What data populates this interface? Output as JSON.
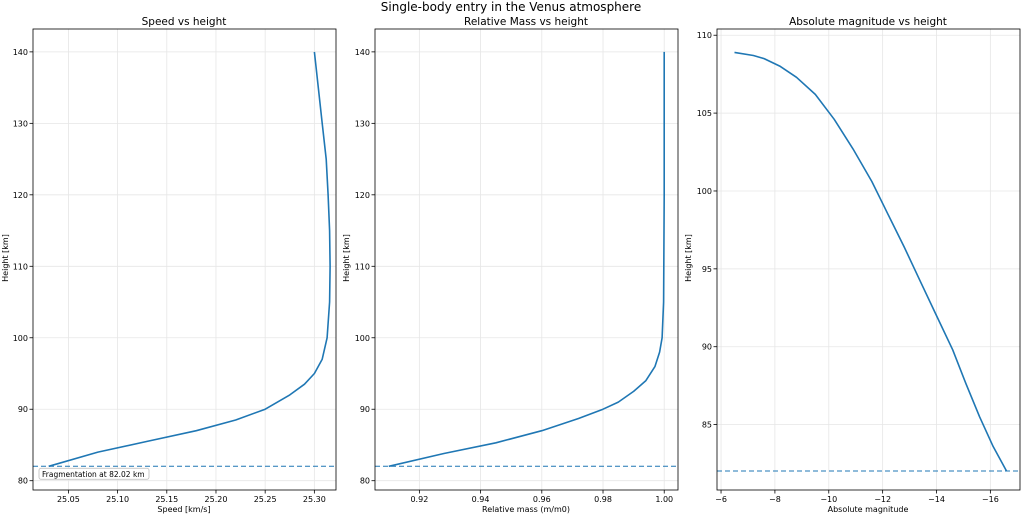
{
  "figure": {
    "suptitle": "Single-body entry in the Venus atmosphere"
  },
  "colors": {
    "series": "#1f77b4",
    "grid": "#e6e6e6",
    "axes": "#000000"
  },
  "chart_data": [
    {
      "type": "line",
      "title": "Speed vs height",
      "xlabel": "Speed [km/s]",
      "ylabel": "Height [km]",
      "xlim": [
        25.014,
        25.322
      ],
      "ylim": [
        78.7,
        143.2
      ],
      "xticks": [
        25.05,
        25.1,
        25.15,
        25.2,
        25.25,
        25.3
      ],
      "xtick_labels": [
        "25.05",
        "25.10",
        "25.15",
        "25.20",
        "25.25",
        "25.30"
      ],
      "yticks": [
        80,
        90,
        100,
        110,
        120,
        130,
        140
      ],
      "ytick_labels": [
        "80",
        "90",
        "100",
        "110",
        "120",
        "130",
        "140"
      ],
      "grid": true,
      "series": [
        {
          "x": [
            25.3,
            25.304,
            25.308,
            25.312,
            25.314,
            25.3155,
            25.316,
            25.3155,
            25.313,
            25.308,
            25.3,
            25.29,
            25.275,
            25.25,
            25.22,
            25.18,
            25.13,
            25.08,
            25.03
          ],
          "y": [
            140,
            135,
            130,
            125,
            120,
            115,
            110,
            105,
            100,
            97,
            95,
            93.5,
            92,
            90,
            88.5,
            87,
            85.5,
            84,
            82.02
          ]
        }
      ],
      "hline": {
        "y": 82.02,
        "style": "dashed"
      },
      "annotation": "Fragmentation at 82.02 km"
    },
    {
      "type": "line",
      "title": "Relative Mass vs height",
      "xlabel": "Relative mass (m/m0)",
      "ylabel": "Height [km]",
      "xlim": [
        0.9055,
        1.0045
      ],
      "ylim": [
        78.7,
        143.2
      ],
      "xticks": [
        0.92,
        0.94,
        0.96,
        0.98,
        1.0
      ],
      "xtick_labels": [
        "0.92",
        "0.94",
        "0.96",
        "0.98",
        "1.00"
      ],
      "yticks": [
        80,
        90,
        100,
        110,
        120,
        130,
        140
      ],
      "ytick_labels": [
        "80",
        "90",
        "100",
        "110",
        "120",
        "130",
        "140"
      ],
      "grid": true,
      "series": [
        {
          "x": [
            1.0,
            1.0,
            0.9998,
            0.9993,
            0.9985,
            0.997,
            0.994,
            0.99,
            0.985,
            0.98,
            0.972,
            0.96,
            0.945,
            0.928,
            0.91
          ],
          "y": [
            140,
            120,
            105,
            100,
            98,
            96,
            94,
            92.5,
            91,
            90,
            88.7,
            87,
            85.3,
            83.8,
            82.02
          ]
        }
      ],
      "hline": {
        "y": 82.02,
        "style": "dashed"
      }
    },
    {
      "type": "line",
      "title": "Absolute magnitude vs height",
      "xlabel": "Absolute magnitude",
      "ylabel": "Height [km]",
      "xlim": [
        -5.85,
        -17.1
      ],
      "ylim": [
        80.8,
        110.4
      ],
      "xticks": [
        -6,
        -8,
        -10,
        -12,
        -14,
        -16
      ],
      "xtick_labels": [
        "−6",
        "−8",
        "−10",
        "−12",
        "−14",
        "−16"
      ],
      "yticks": [
        85,
        90,
        95,
        100,
        105,
        110
      ],
      "ytick_labels": [
        "85",
        "90",
        "95",
        "100",
        "105",
        "110"
      ],
      "grid": true,
      "series": [
        {
          "x": [
            -6.5,
            -7.2,
            -7.6,
            -8.2,
            -8.8,
            -9.5,
            -10.2,
            -10.9,
            -11.6,
            -12.2,
            -12.8,
            -13.4,
            -14.0,
            -14.6,
            -15.1,
            -15.6,
            -16.1,
            -16.6
          ],
          "y": [
            108.9,
            108.7,
            108.5,
            108.0,
            107.3,
            106.2,
            104.6,
            102.7,
            100.6,
            98.5,
            96.4,
            94.2,
            92.0,
            89.8,
            87.6,
            85.5,
            83.6,
            82.02
          ]
        }
      ],
      "hline": {
        "y": 82.02,
        "style": "dashed"
      }
    }
  ]
}
